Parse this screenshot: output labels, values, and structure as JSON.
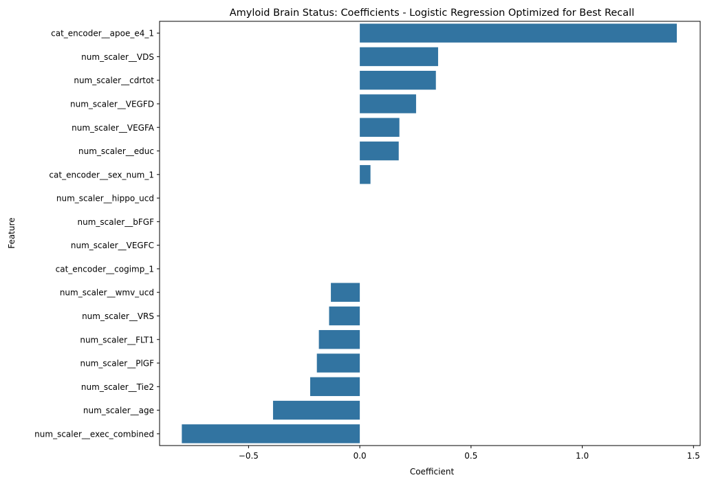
{
  "chart_data": {
    "type": "bar",
    "orientation": "horizontal",
    "title": "Amyloid Brain Status: Coefficients - Logistic Regression Optimized for Best Recall",
    "xlabel": "Coefficient",
    "ylabel": "Feature",
    "xlim": [
      -0.9,
      1.53
    ],
    "xticks": [
      -0.5,
      0.0,
      0.5,
      1.0,
      1.5
    ],
    "xtick_labels": [
      "−0.5",
      "0.0",
      "0.5",
      "1.0",
      "1.5"
    ],
    "grid": false,
    "bar_color": "#3274a1",
    "categories": [
      "cat_encoder__apoe_e4_1",
      "num_scaler__VDS",
      "num_scaler__cdrtot",
      "num_scaler__VEGFD",
      "num_scaler__VEGFA",
      "num_scaler__educ",
      "cat_encoder__sex_num_1",
      "num_scaler__hippo_ucd",
      "num_scaler__bFGF",
      "num_scaler__VEGFC",
      "cat_encoder__cogimp_1",
      "num_scaler__wmv_ucd",
      "num_scaler__VRS",
      "num_scaler__FLT1",
      "num_scaler__PlGF",
      "num_scaler__Tie2",
      "num_scaler__age",
      "num_scaler__exec_combined"
    ],
    "values": [
      1.425,
      0.352,
      0.342,
      0.253,
      0.178,
      0.175,
      0.048,
      0.0,
      0.0,
      0.0,
      0.0,
      -0.13,
      -0.138,
      -0.184,
      -0.193,
      -0.223,
      -0.39,
      -0.8
    ]
  }
}
